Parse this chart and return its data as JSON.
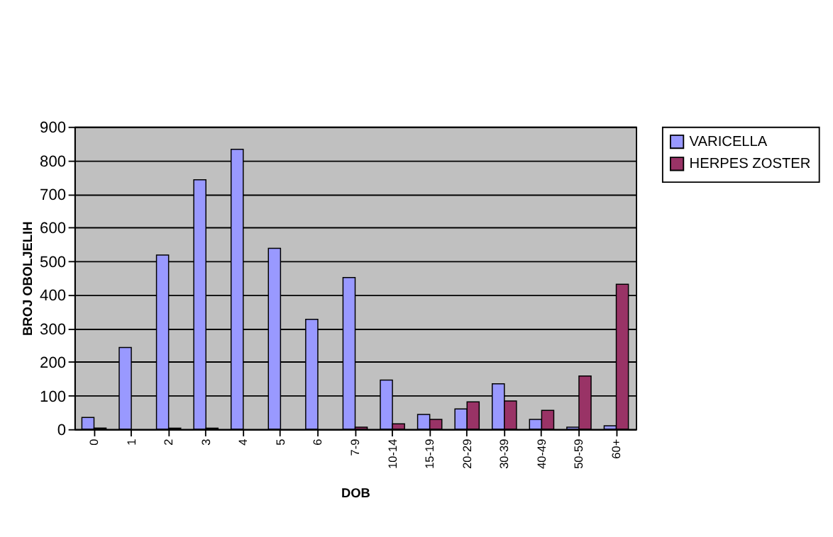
{
  "chart_data": {
    "type": "bar",
    "xlabel": "DOB",
    "ylabel": "BROJ OBOLJELIH",
    "categories": [
      "0",
      "1",
      "2",
      "3",
      "4",
      "5",
      "6",
      "7-9",
      "10-14",
      "15-19",
      "20-29",
      "30-39",
      "40-49",
      "50-59",
      "60+"
    ],
    "series": [
      {
        "name": "VARICELLA",
        "color": "#9999ff",
        "values": [
          35,
          243,
          518,
          742,
          833,
          538,
          327,
          451,
          146,
          44,
          60,
          135,
          29,
          6,
          10
        ]
      },
      {
        "name": "HERPES ZOSTER",
        "color": "#993366",
        "values": [
          3,
          null,
          3,
          3,
          null,
          null,
          null,
          6,
          16,
          29,
          81,
          84,
          56,
          158,
          431
        ]
      }
    ],
    "ylim": [
      0,
      900
    ],
    "yticks": [
      0,
      100,
      200,
      300,
      400,
      500,
      600,
      700,
      800,
      900
    ],
    "grid": "y",
    "legend": "right"
  }
}
